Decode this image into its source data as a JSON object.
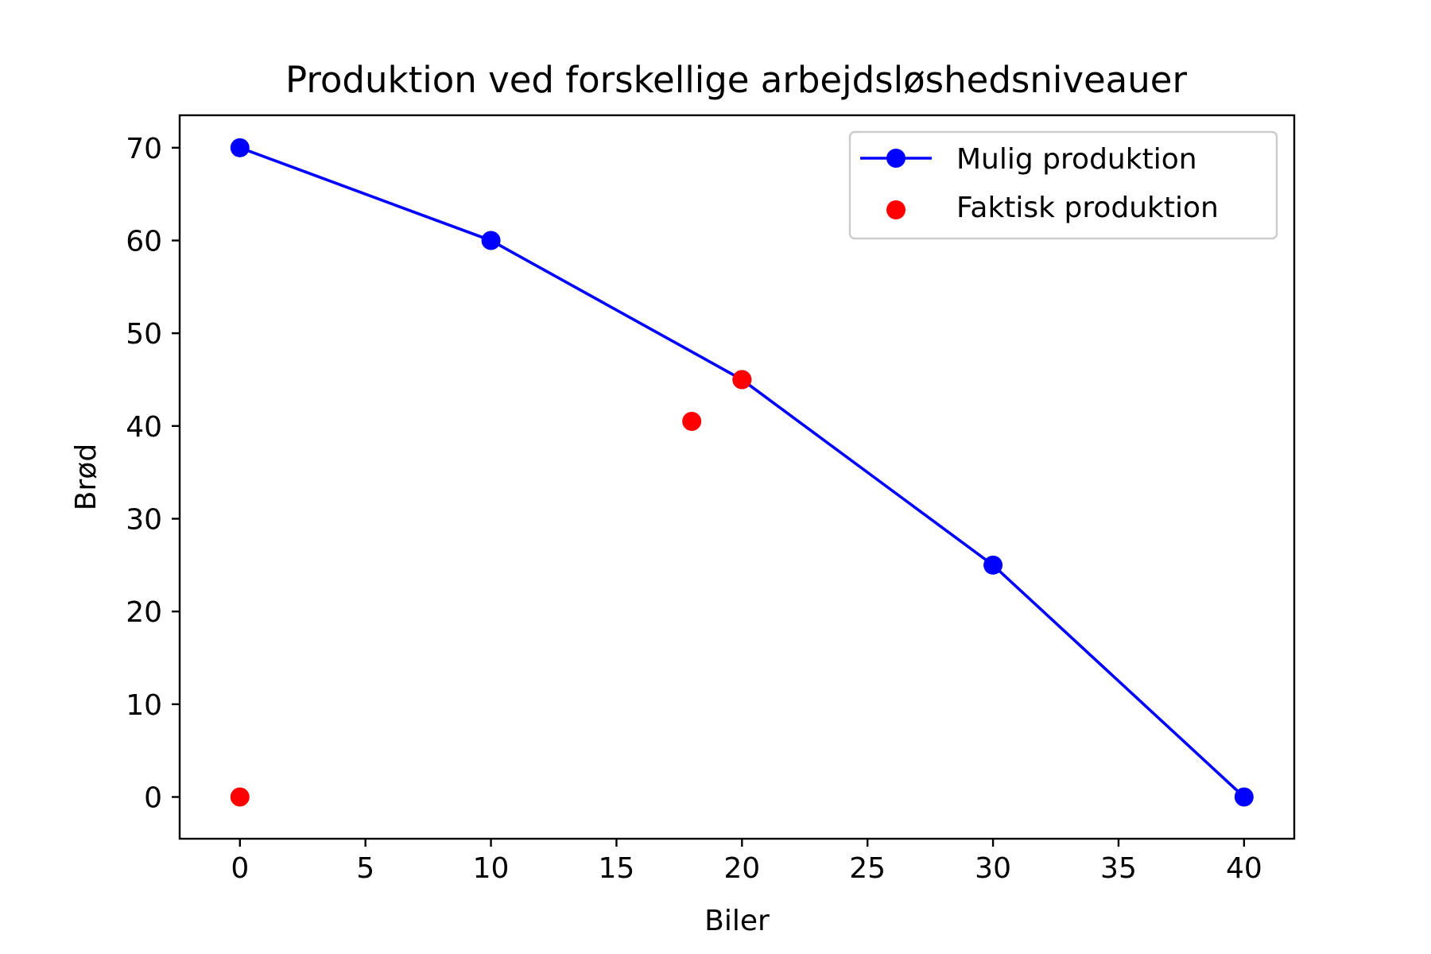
{
  "chart_data": {
    "type": "scatter",
    "title": "Produktion ved forskellige arbejdsløshedsniveauer",
    "xlabel": "Biler",
    "ylabel": "Brød",
    "xlim": [
      -2.4,
      42
    ],
    "ylim": [
      -4.5,
      73.5
    ],
    "xticks": [
      0,
      5,
      10,
      15,
      20,
      25,
      30,
      35,
      40
    ],
    "yticks": [
      0,
      10,
      20,
      30,
      40,
      50,
      60,
      70
    ],
    "grid": false,
    "legend_position": "top-right",
    "series": [
      {
        "name": "Mulig produktion",
        "kind": "line-markers",
        "color": "#0000ff",
        "points": [
          {
            "x": 0,
            "y": 70
          },
          {
            "x": 10,
            "y": 60
          },
          {
            "x": 20,
            "y": 45
          },
          {
            "x": 30,
            "y": 25
          },
          {
            "x": 40,
            "y": 0
          }
        ]
      },
      {
        "name": "Faktisk produktion",
        "kind": "markers",
        "color": "#ff0000",
        "points": [
          {
            "x": 0,
            "y": 0
          },
          {
            "x": 18,
            "y": 40.5
          },
          {
            "x": 20,
            "y": 45
          }
        ]
      }
    ]
  }
}
